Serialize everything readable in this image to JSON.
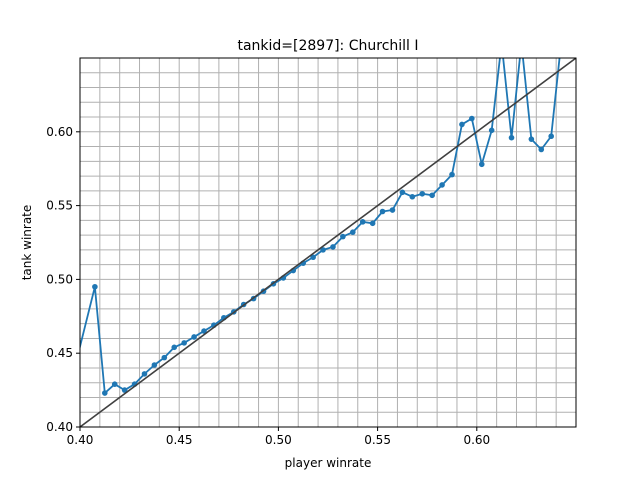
{
  "chart_data": {
    "type": "line",
    "title": "tankid=[2897]: Churchill I",
    "xlabel": "player winrate",
    "ylabel": "tank winrate",
    "xlim": [
      0.4,
      0.65
    ],
    "ylim": [
      0.4,
      0.65
    ],
    "xticks": [
      0.4,
      0.45,
      0.5,
      0.55,
      0.6
    ],
    "xtick_labels": [
      "0.40",
      "0.45",
      "0.50",
      "0.55",
      "0.60"
    ],
    "yticks": [
      0.4,
      0.45,
      0.5,
      0.55,
      0.6
    ],
    "ytick_labels": [
      "0.40",
      "0.45",
      "0.50",
      "0.55",
      "0.60"
    ],
    "grid": true,
    "minor_grid_step": 0.01,
    "series": [
      {
        "color": "#1f77b4",
        "marker": "circle",
        "x": [
          0.3975,
          0.4075,
          0.4125,
          0.4175,
          0.4225,
          0.4275,
          0.4325,
          0.4375,
          0.4425,
          0.4475,
          0.4525,
          0.4575,
          0.4625,
          0.4675,
          0.4725,
          0.4775,
          0.4825,
          0.4875,
          0.4925,
          0.4975,
          0.5025,
          0.5075,
          0.5125,
          0.5175,
          0.5225,
          0.5275,
          0.5325,
          0.5375,
          0.5425,
          0.5475,
          0.5525,
          0.5575,
          0.5625,
          0.5675,
          0.5725,
          0.5775,
          0.5825,
          0.5875,
          0.5925,
          0.5975,
          0.6025,
          0.6075,
          0.6125,
          0.6175,
          0.6225,
          0.6275,
          0.6325,
          0.6375,
          0.6425
        ],
        "y": [
          0.441,
          0.495,
          0.423,
          0.429,
          0.425,
          0.429,
          0.436,
          0.442,
          0.447,
          0.454,
          0.457,
          0.461,
          0.465,
          0.469,
          0.474,
          0.478,
          0.483,
          0.487,
          0.492,
          0.497,
          0.501,
          0.506,
          0.511,
          0.515,
          0.52,
          0.522,
          0.529,
          0.532,
          0.539,
          0.538,
          0.546,
          0.547,
          0.559,
          0.556,
          0.558,
          0.557,
          0.564,
          0.571,
          0.605,
          0.609,
          0.578,
          0.601,
          0.66,
          0.596,
          0.66,
          0.595,
          0.588,
          0.597,
          0.66
        ]
      },
      {
        "color": "#404040",
        "marker": "none",
        "x": [
          0.4,
          0.65
        ],
        "y": [
          0.4,
          0.65
        ]
      }
    ]
  }
}
